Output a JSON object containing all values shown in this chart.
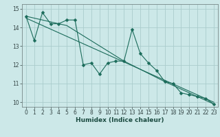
{
  "title": "",
  "xlabel": "Humidex (Indice chaleur)",
  "ylabel": "",
  "bg_color": "#cce8e8",
  "grid_color": "#aacccc",
  "line_color": "#1a6b5a",
  "xlim": [
    -0.5,
    23.5
  ],
  "ylim": [
    9.75,
    15.25
  ],
  "yticks": [
    10,
    11,
    12,
    13,
    14,
    15
  ],
  "xticks": [
    0,
    1,
    2,
    3,
    4,
    5,
    6,
    7,
    8,
    9,
    10,
    11,
    12,
    13,
    14,
    15,
    16,
    17,
    18,
    19,
    20,
    21,
    22,
    23
  ],
  "series1_x": [
    0,
    1,
    2,
    3,
    4,
    5,
    6,
    7,
    8,
    9,
    10,
    11,
    12,
    13,
    14,
    15,
    16,
    17,
    18,
    19,
    20,
    21,
    22,
    23
  ],
  "series1_y": [
    14.6,
    13.3,
    14.8,
    14.2,
    14.2,
    14.4,
    14.4,
    12.0,
    12.1,
    11.5,
    12.1,
    12.2,
    12.2,
    13.9,
    12.6,
    12.1,
    11.7,
    11.1,
    11.0,
    10.5,
    10.4,
    10.3,
    10.2,
    9.9
  ],
  "series2_x": [
    0,
    5,
    12,
    17,
    23
  ],
  "series2_y": [
    14.6,
    14.1,
    12.2,
    11.1,
    9.9
  ],
  "series3_x": [
    0,
    23
  ],
  "series3_y": [
    14.5,
    10.0
  ]
}
